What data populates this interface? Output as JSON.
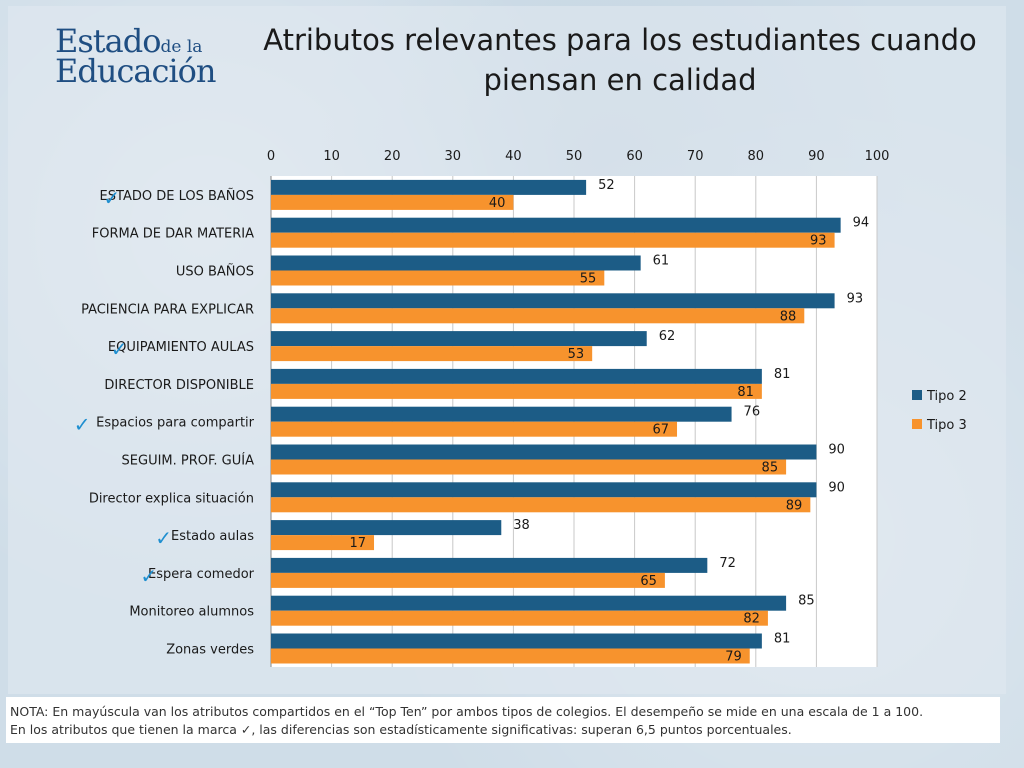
{
  "logo": {
    "line1_main": "Estado",
    "line1_small": "de la",
    "line2": "Educación"
  },
  "title": "Atributos relevantes para los  estudiantes cuando piensan en calidad",
  "colors": {
    "tipo2": "#1c5c86",
    "tipo3": "#f7932d",
    "check": "#1f8fd0"
  },
  "icons": {
    "check": "checkmark-icon"
  },
  "chart_data": {
    "type": "bar",
    "orientation": "horizontal",
    "title": "Atributos relevantes para los  estudiantes cuando piensan en calidad",
    "xlim": [
      0,
      100
    ],
    "x_ticks": [
      0,
      10,
      20,
      30,
      40,
      50,
      60,
      70,
      80,
      90,
      100
    ],
    "axis_position": "top",
    "grid": true,
    "legend_position": "right",
    "categories": [
      "ESTADO DE LOS BAÑOS",
      "FORMA DE DAR MATERIA",
      "USO BAÑOS",
      "PACIENCIA PARA EXPLICAR",
      "EQUIPAMIENTO AULAS",
      "DIRECTOR DISPONIBLE",
      "Espacios para compartir",
      "SEGUIM. PROF. GUÍA",
      "Director explica situación",
      "Estado aulas",
      "Espera comedor",
      "Monitoreo alumnos",
      "Zonas verdes"
    ],
    "checked": [
      true,
      false,
      false,
      false,
      true,
      false,
      true,
      false,
      false,
      true,
      true,
      false,
      false
    ],
    "series": [
      {
        "name": "Tipo 2",
        "values": [
          52,
          94,
          61,
          93,
          62,
          81,
          76,
          90,
          90,
          38,
          72,
          85,
          81
        ]
      },
      {
        "name": "Tipo 3",
        "values": [
          40,
          93,
          55,
          88,
          53,
          81,
          67,
          85,
          89,
          17,
          65,
          82,
          79
        ]
      }
    ]
  },
  "note": {
    "line1": "NOTA: En mayúscula van los atributos compartidos en el “Top Ten” por ambos tipos de colegios. El desempeño se mide en una escala de 1 a 100.",
    "line2": "En los atributos que tienen la marca ✓, las diferencias son estadísticamente significativas: superan 6,5 puntos porcentuales."
  }
}
